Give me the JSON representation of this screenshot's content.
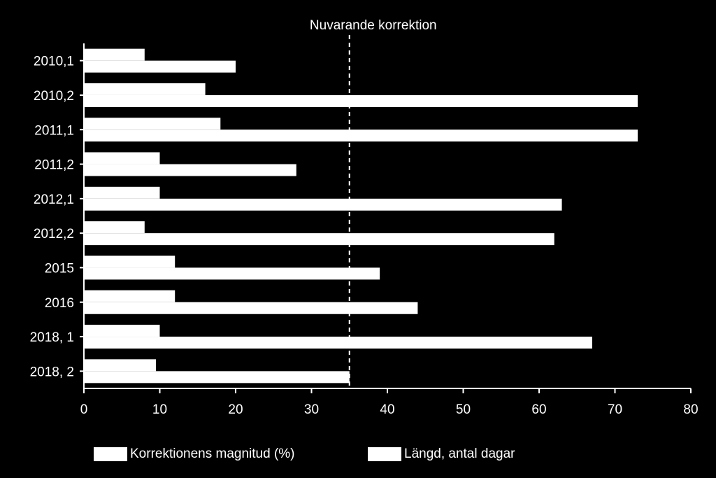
{
  "chart_data": {
    "type": "bar",
    "orientation": "horizontal",
    "categories": [
      "2010,1",
      "2010,2",
      "2011,1",
      "2011,2",
      "2012,1",
      "2012,2",
      "2015",
      "2016",
      "2018, 1",
      "2018, 2"
    ],
    "series": [
      {
        "name": "Korrektionens magnitud (%)",
        "values": [
          8,
          16,
          18,
          10,
          10,
          8,
          12,
          12,
          10,
          9.5
        ]
      },
      {
        "name": "Längd, antal dagar",
        "values": [
          20,
          73,
          73,
          28,
          63,
          62,
          39,
          44,
          67,
          35
        ]
      }
    ],
    "x_ticks": [
      "0",
      "10",
      "20",
      "30",
      "40",
      "50",
      "60",
      "70",
      "80"
    ],
    "xlim": [
      0,
      80
    ],
    "reference_line": {
      "value": 35,
      "label": "Nuvarande korrektion",
      "style": "dashed"
    },
    "grid": false,
    "legend_position": "bottom",
    "colors": {
      "background": "#000000",
      "bars": "#ffffff",
      "text": "#ffffff"
    }
  }
}
